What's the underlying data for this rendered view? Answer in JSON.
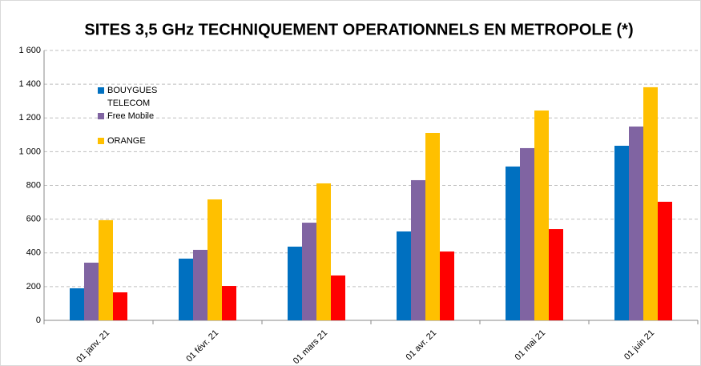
{
  "chart_data": {
    "type": "bar",
    "title": "SITES 3,5 GHz TECHNIQUEMENT OPERATIONNELS EN METROPOLE (*)",
    "categories": [
      "01 janv. 21",
      "01 févr. 21",
      "01 mars 21",
      "01 avr. 21",
      "01 mai 21",
      "01 juin 21"
    ],
    "series": [
      {
        "name": "BOUYGUES TELECOM",
        "color": "#0070c0",
        "values": [
          190,
          366,
          437,
          527,
          912,
          1035
        ]
      },
      {
        "name": "Free Mobile",
        "color": "#8064a2",
        "values": [
          342,
          418,
          579,
          831,
          1021,
          1149
        ]
      },
      {
        "name": "ORANGE",
        "color": "#ffc000",
        "values": [
          594,
          717,
          812,
          1111,
          1244,
          1382
        ]
      },
      {
        "color": "#ff0000",
        "values": [
          166,
          204,
          266,
          408,
          541,
          703
        ]
      }
    ],
    "ylim": [
      0,
      1600
    ],
    "yticks": [
      0,
      200,
      400,
      600,
      800,
      {
        "value": 1000,
        "label": "1 000"
      },
      {
        "value": 1200,
        "label": "1 200"
      },
      {
        "value": 1400,
        "label": "1 400"
      },
      {
        "value": 1600,
        "label": "1 600"
      }
    ],
    "grid": true
  }
}
